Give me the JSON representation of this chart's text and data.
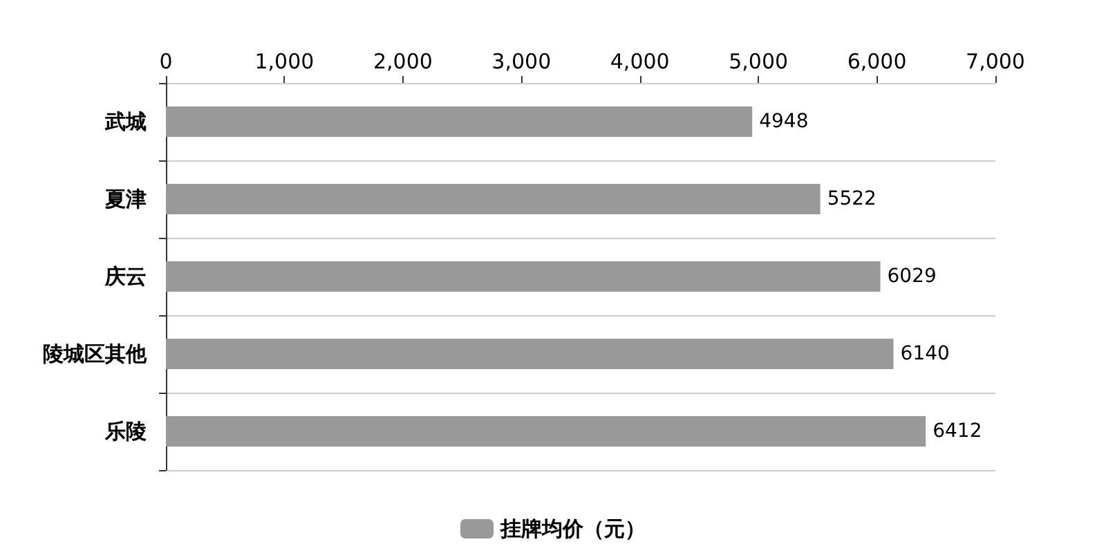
{
  "chart_data": {
    "type": "bar",
    "orientation": "horizontal",
    "categories": [
      "武城",
      "夏津",
      "庆云",
      "陵城区其他",
      "乐陵"
    ],
    "series": [
      {
        "name": "挂牌均价（元）",
        "color": "#999999",
        "values": [
          4948,
          5522,
          6029,
          6140,
          6412
        ]
      }
    ],
    "xlim": [
      0,
      7000
    ],
    "xticks": [
      0,
      {
        "value": 1000,
        "label": "1,000"
      },
      {
        "value": 2000,
        "label": "2,000"
      },
      {
        "value": 3000,
        "label": "3,000"
      },
      {
        "value": 4000,
        "label": "4,000"
      },
      {
        "value": 5000,
        "label": "5,000"
      },
      {
        "value": 6000,
        "label": "6,000"
      },
      {
        "value": 7000,
        "label": "7,000"
      }
    ],
    "data_labels": true,
    "grid": "y",
    "legend": "bottom"
  }
}
